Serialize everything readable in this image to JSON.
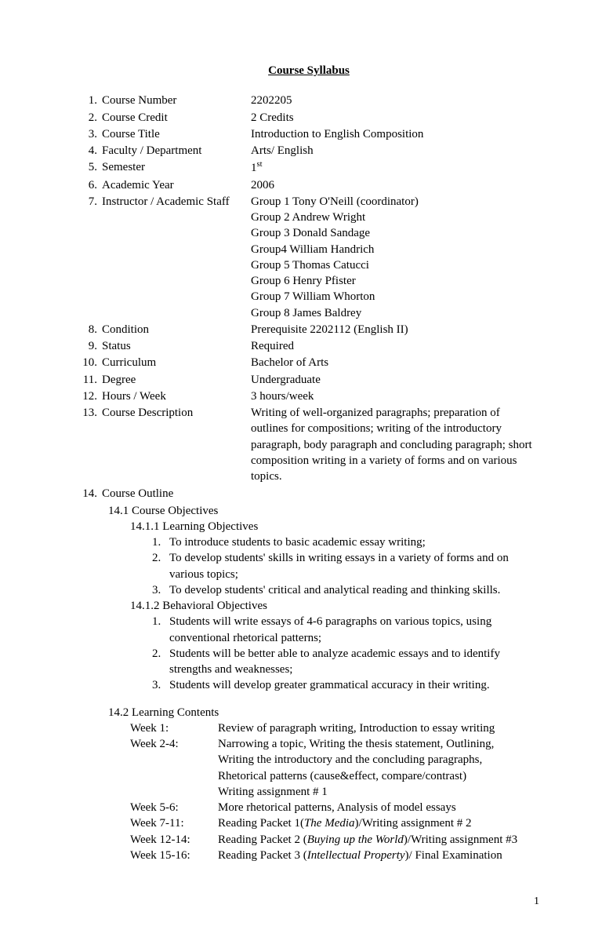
{
  "title": "Course Syllabus",
  "items": [
    {
      "num": "1.",
      "label": "Course Number",
      "value": "2202205"
    },
    {
      "num": "2.",
      "label": "Course Credit",
      "value": "2 Credits"
    },
    {
      "num": "3.",
      "label": "Course Title",
      "value": "Introduction to English Composition"
    },
    {
      "num": "4.",
      "label": "Faculty / Department",
      "value": "Arts/ English"
    },
    {
      "num": "5.",
      "label": "Semester",
      "value": "1",
      "sup": "st"
    },
    {
      "num": "6.",
      "label": "Academic Year",
      "value": "2006"
    },
    {
      "num": "7.",
      "label": "Instructor / Academic Staff",
      "values": [
        "Group 1 Tony O'Neill (coordinator)",
        "Group 2 Andrew Wright",
        "Group 3 Donald Sandage",
        "Group4 William Handrich",
        "Group 5 Thomas Catucci",
        "Group 6 Henry Pfister",
        "Group 7 William Whorton",
        "Group 8 James Baldrey"
      ]
    },
    {
      "num": "8.",
      "label": "Condition",
      "value": "Prerequisite 2202112 (English II)"
    },
    {
      "num": "9.",
      "label": "Status",
      "value": "Required"
    },
    {
      "num": "10.",
      "label": "Curriculum",
      "value": "Bachelor of Arts"
    },
    {
      "num": "11.",
      "label": "Degree",
      "value": "Undergraduate"
    },
    {
      "num": "12.",
      "label": "Hours / Week",
      "value": "3 hours/week"
    },
    {
      "num": "13.",
      "label": "Course Description",
      "value": "Writing of well-organized paragraphs; preparation of outlines for compositions; writing of the introductory paragraph, body paragraph and concluding paragraph; short composition writing in a variety of forms and on various topics."
    }
  ],
  "outline": {
    "num": "14.",
    "label": "Course Outline",
    "objectives_title": "14.1 Course Objectives",
    "learning_obj_title": "14.1.1  Learning Objectives",
    "learning_objs": [
      {
        "num": "1.",
        "text": "To introduce students to basic academic essay writing;"
      },
      {
        "num": "2.",
        "text": "To develop students' skills in writing essays in a variety of forms and on various topics;"
      },
      {
        "num": "3.",
        "text": "To develop students' critical and analytical reading and thinking skills."
      }
    ],
    "behavioral_obj_title": "14.1.2 Behavioral Objectives",
    "behavioral_objs": [
      {
        "num": "1.",
        "text": "Students will write essays of 4-6 paragraphs on various topics, using conventional rhetorical patterns;"
      },
      {
        "num": "2.",
        "text": "Students will be better able to analyze academic essays and to identify strengths and weaknesses;"
      },
      {
        "num": "3.",
        "text": "Students will develop greater grammatical accuracy in their writing."
      }
    ],
    "learning_contents_title": "14.2 Learning Contents",
    "weeks": [
      {
        "week": "Week 1:",
        "desc": "  Review of paragraph writing, Introduction to essay writing"
      },
      {
        "week": "Week 2-4:",
        "desc": "Narrowing a topic, Writing the thesis statement, Outlining,",
        "cont": [
          "Writing the introductory and the concluding paragraphs,",
          " Rhetorical patterns (cause&effect, compare/contrast)",
          " Writing assignment # 1"
        ]
      },
      {
        "week": "Week 5-6:",
        "desc": "More rhetorical patterns, Analysis of model essays"
      },
      {
        "week": "Week 7-11:",
        "desc_pre": "Reading Packet 1(",
        "desc_italic": "The Media",
        "desc_post": ")/Writing assignment # 2"
      },
      {
        "week": "Week 12-14:",
        "desc_pre": "Reading Packet 2 (",
        "desc_italic": "Buying up the World",
        "desc_post": ")/Writing assignment #3"
      },
      {
        "week": "Week 15-16:",
        "desc_pre": "Reading Packet 3 (",
        "desc_italic": "Intellectual Property",
        "desc_post": ")/ Final Examination"
      }
    ]
  },
  "page_number": "1"
}
